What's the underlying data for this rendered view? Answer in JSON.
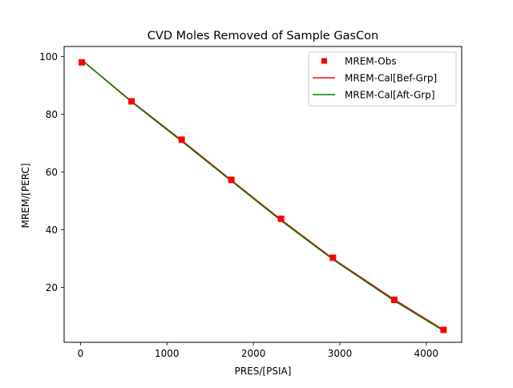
{
  "chart_data": {
    "type": "line",
    "title": "CVD Moles Removed of Sample GasCon",
    "xlabel": "PRES/[PSIA]",
    "ylabel": "MREM/[PERC]",
    "xlim": [
      -190,
      4410
    ],
    "ylim": [
      1,
      103.5
    ],
    "xticks": [
      0,
      1000,
      2000,
      3000,
      4000
    ],
    "xtick_labels": [
      "0",
      "1000",
      "2000",
      "3000",
      "4000"
    ],
    "yticks": [
      20,
      40,
      60,
      80,
      100
    ],
    "ytick_labels": [
      "20",
      "40",
      "60",
      "80",
      "100"
    ],
    "grid": false,
    "legend_position": "top-right",
    "series": [
      {
        "name": "MREM-Obs",
        "kind": "marker",
        "marker": "square",
        "color": "#ff0000",
        "x": [
          15,
          590,
          1170,
          1745,
          2320,
          2920,
          3630,
          4200
        ],
        "y": [
          98.0,
          84.5,
          71.2,
          57.3,
          43.8,
          30.3,
          15.7,
          5.3
        ]
      },
      {
        "name": "MREM-Cal[Bef-Grp]",
        "kind": "line",
        "color": "#ff0000",
        "x": [
          15,
          590,
          1170,
          1745,
          2320,
          2920,
          3630,
          4200
        ],
        "y": [
          98.8,
          84.5,
          71.0,
          57.2,
          43.5,
          30.0,
          15.8,
          5.3
        ]
      },
      {
        "name": "MREM-Cal[Aft-Grp]",
        "kind": "line",
        "color": "#008000",
        "x": [
          15,
          590,
          1170,
          1745,
          2320,
          2920,
          3630,
          4200
        ],
        "y": [
          98.8,
          84.3,
          70.7,
          56.9,
          43.2,
          29.7,
          15.4,
          5.0
        ]
      }
    ]
  }
}
